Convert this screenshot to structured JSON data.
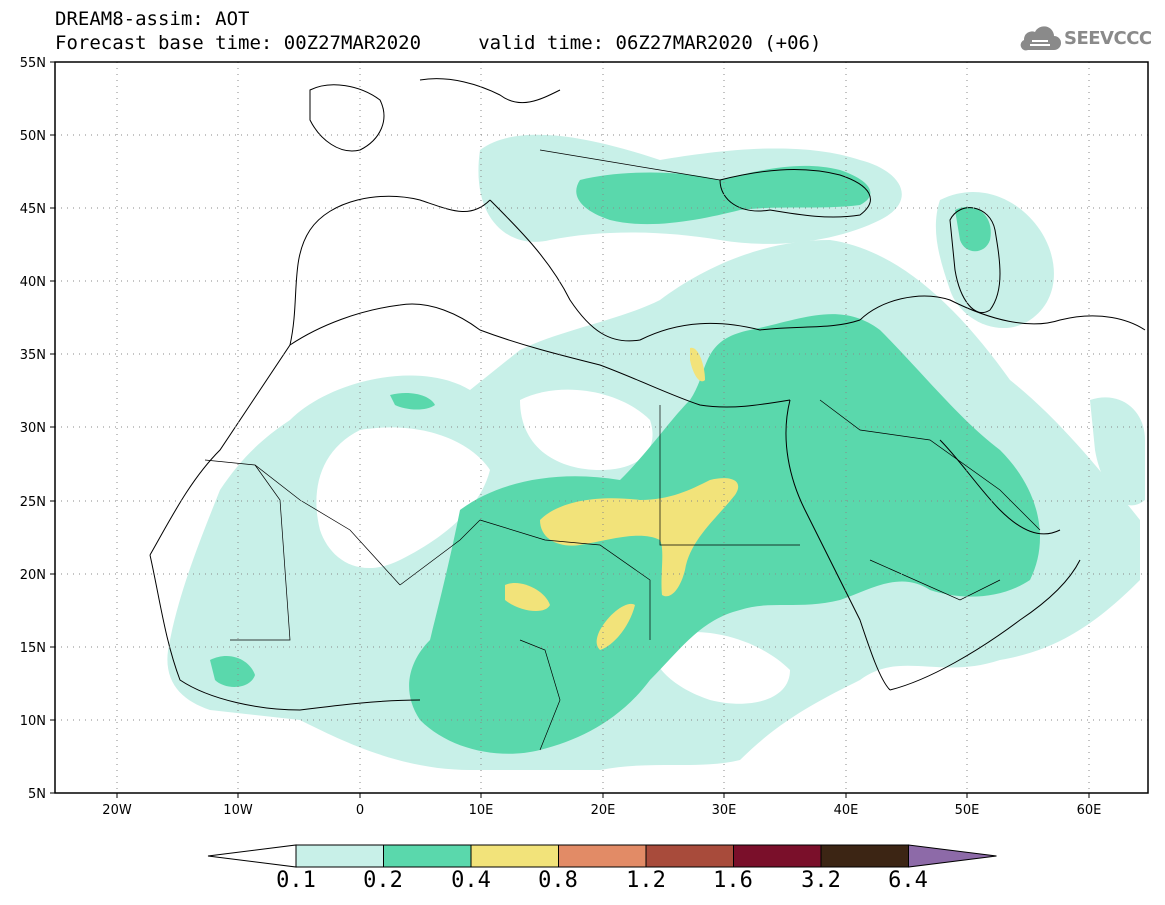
{
  "header": {
    "line1": "DREAM8-assim: AOT",
    "line2": "Forecast base time: 00Z27MAR2020     valid time: 06Z27MAR2020 (+06)"
  },
  "logo": {
    "text": "SEEVCCC",
    "icon": "cloud-icon"
  },
  "axes": {
    "lat_labels": [
      "55N",
      "50N",
      "45N",
      "40N",
      "35N",
      "30N",
      "25N",
      "20N",
      "15N",
      "10N",
      "5N"
    ],
    "lon_labels": [
      "20W",
      "10W",
      "0",
      "10E",
      "20E",
      "30E",
      "40E",
      "50E",
      "60E"
    ],
    "lat_range": [
      5,
      55
    ],
    "lon_range": [
      -25,
      65
    ],
    "grid": "dotted"
  },
  "colorbar": {
    "labels": [
      "0.1",
      "0.2",
      "0.4",
      "0.8",
      "1.2",
      "1.6",
      "3.2",
      "6.4"
    ],
    "colors": [
      "#ffffff",
      "#c8f0e8",
      "#5ad8ac",
      "#f2e37a",
      "#e28b66",
      "#a84b3b",
      "#7a0f2a",
      "#3c2514",
      "#8d6aa8"
    ]
  }
}
